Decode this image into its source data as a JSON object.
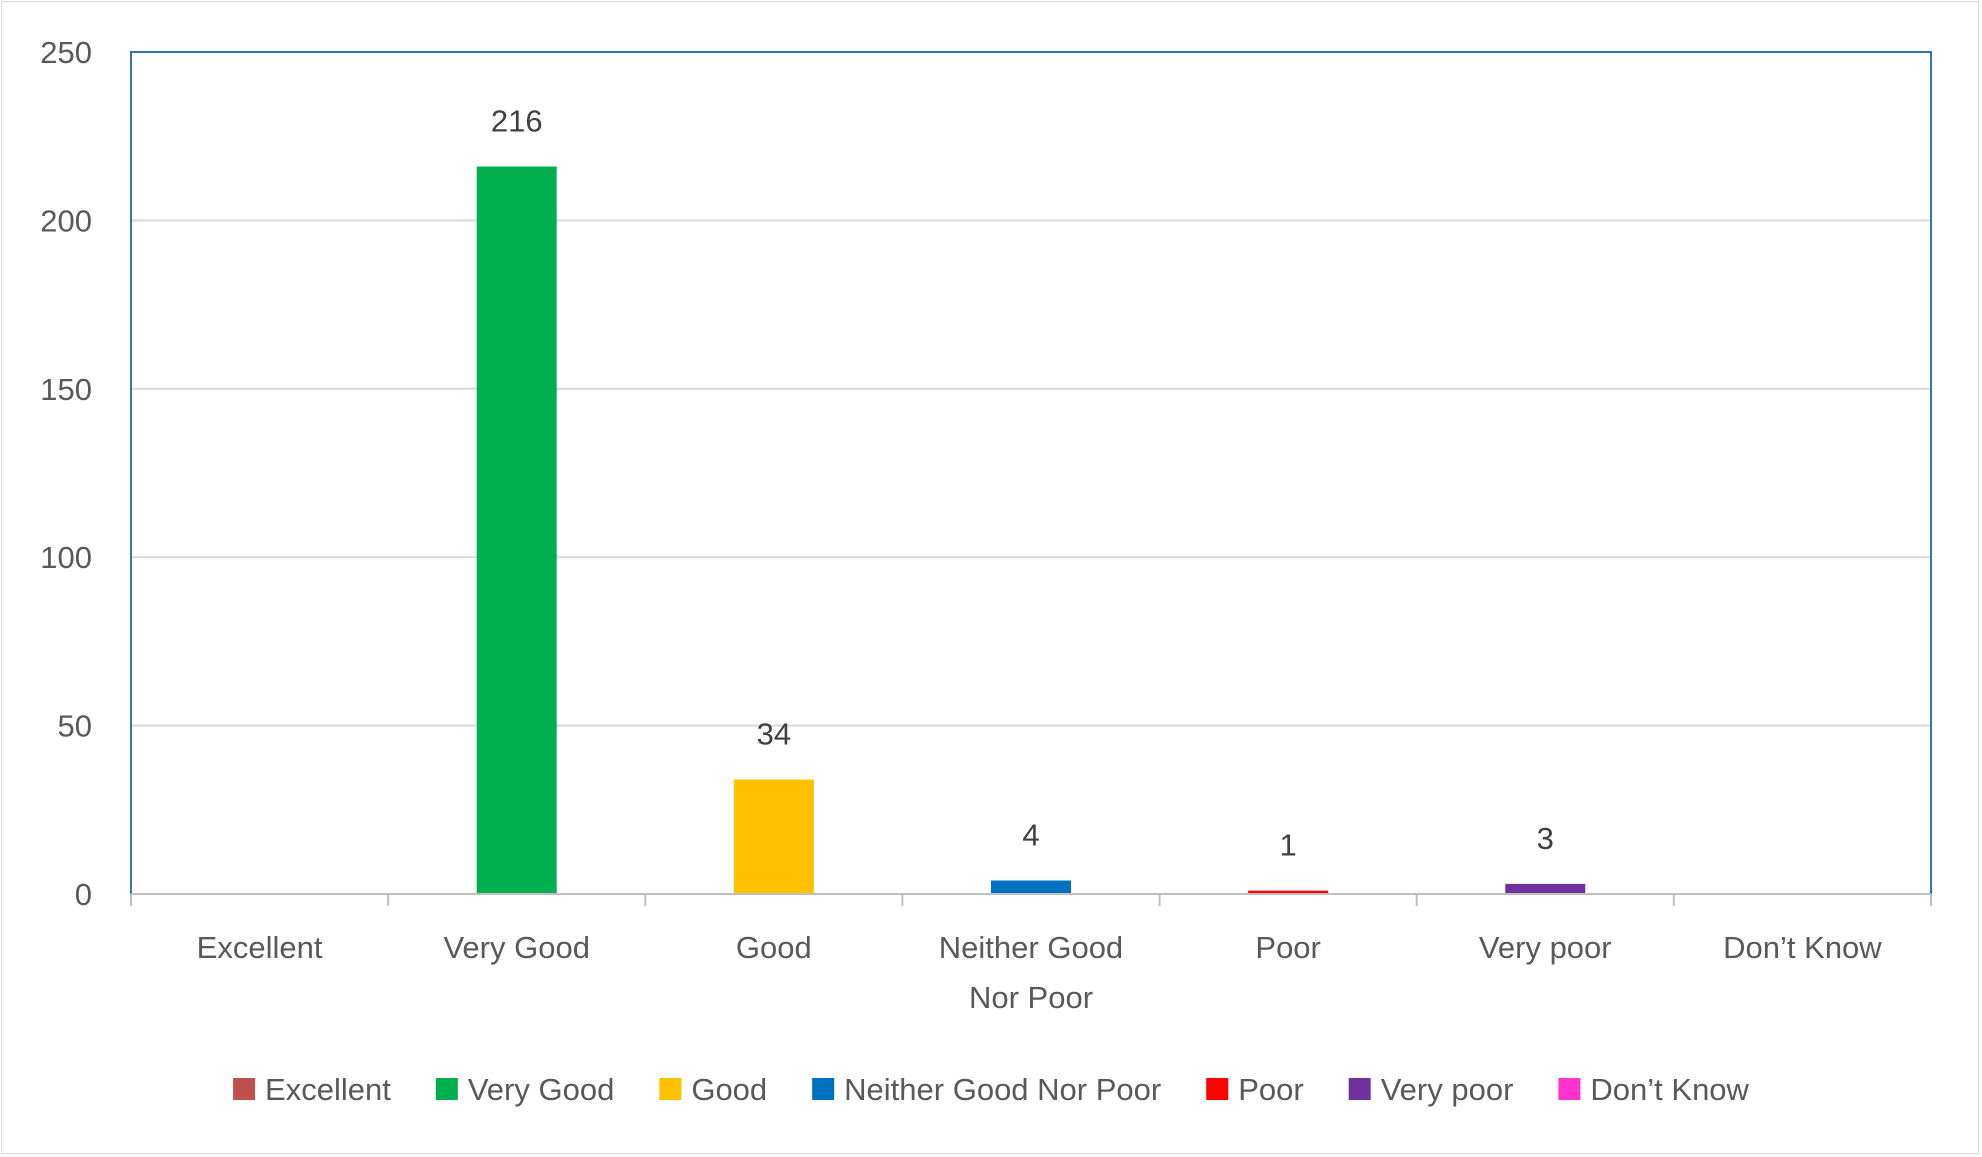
{
  "chart_data": {
    "type": "bar",
    "categories": [
      "Excellent",
      "Very Good",
      "Good",
      "Neither Good Nor Poor",
      "Poor",
      "Very poor",
      "Don’t Know"
    ],
    "category_tick_labels": [
      [
        "Excellent"
      ],
      [
        "Very Good"
      ],
      [
        "Good"
      ],
      [
        "Neither Good",
        "Nor Poor"
      ],
      [
        "Poor"
      ],
      [
        "Very poor"
      ],
      [
        "Don’t Know"
      ]
    ],
    "values": [
      0,
      216,
      34,
      4,
      1,
      3,
      0
    ],
    "data_labels": [
      "",
      "216",
      "34",
      "4",
      "1",
      "3",
      ""
    ],
    "colors": [
      "#C0504D",
      "#00B050",
      "#FFC000",
      "#0070C0",
      "#FF0000",
      "#7030A0",
      "#FF33CC"
    ],
    "ylim": [
      0,
      250
    ],
    "yticks": [
      0,
      50,
      100,
      150,
      200,
      250
    ],
    "ytick_labels": [
      "0",
      "50",
      "100",
      "150",
      "200",
      "250"
    ],
    "title": "",
    "xlabel": "",
    "ylabel": "",
    "grid": true,
    "legend": {
      "position": "bottom",
      "entries": [
        "Excellent",
        "Very Good",
        "Good",
        "Neither Good Nor Poor",
        "Poor",
        "Very poor",
        "Don’t Know"
      ]
    }
  }
}
